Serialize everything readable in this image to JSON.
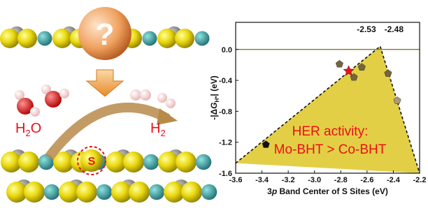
{
  "illustration": {
    "question": "?",
    "reactant": [
      "H",
      "2",
      "O"
    ],
    "product": [
      "H",
      "2"
    ],
    "site": "S"
  },
  "chart_data": {
    "type": "scatter",
    "xlabel": [
      "3",
      "p",
      " Band Center of S Sites (eV)"
    ],
    "ylabel": [
      "-|Δ",
      "G",
      "H*",
      "| (eV)"
    ],
    "xlim": [
      -3.6,
      -2.2
    ],
    "ylim": [
      -1.6,
      0.35
    ],
    "xticks": [
      -3.6,
      -3.4,
      -3.2,
      {
        "value": -3,
        "label": "-3.0"
      },
      -2.8,
      -2.6,
      -2.4,
      -2.2
    ],
    "yticks": [
      {
        "value": 0,
        "label": "0.0"
      },
      -0.4,
      -0.8,
      -1.2,
      -1.6
    ],
    "reference_line": {
      "value": 0,
      "color": "#8a8530"
    },
    "volcano": {
      "color": "#e3cf45",
      "x": [
        -3.6,
        -2.5,
        -2.2
      ],
      "values": [
        -1.47,
        0.04,
        -1.6
      ]
    },
    "peaks": [
      "-2.53",
      "-2.48"
    ],
    "annotation": [
      "HER activity:",
      "Mo-BHT > Co-BHT"
    ],
    "annotation_color": "#e8101a",
    "series": [
      {
        "color": "#111111",
        "marker": "pentagon",
        "x": [
          -3.37
        ],
        "values": [
          -1.23
        ]
      },
      {
        "color": "#74663a",
        "marker": "pentagon",
        "x": [
          -2.81,
          -2.7,
          -2.64,
          -2.44
        ],
        "values": [
          -0.19,
          -0.36,
          -0.23,
          -0.31
        ]
      },
      {
        "color": "#a89a72",
        "marker": "pentagon",
        "x": [
          -2.37
        ],
        "values": [
          -0.66
        ]
      },
      {
        "color": "#e8101a",
        "marker": "star",
        "x": [
          -2.74
        ],
        "values": [
          -0.28
        ]
      }
    ]
  }
}
